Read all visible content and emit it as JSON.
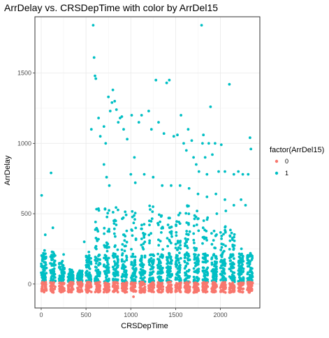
{
  "chart_data": {
    "type": "scatter",
    "title": "ArrDelay vs. CRSDepTime with color by ArrDel15",
    "xlabel": "CRSDepTime",
    "ylabel": "ArrDelay",
    "xlim": [
      -70,
      2440
    ],
    "ylim": [
      -170,
      1900
    ],
    "x_ticks": [
      0,
      500,
      1000,
      1500,
      2000
    ],
    "y_ticks": [
      0,
      500,
      1000,
      1500
    ],
    "x_tick_labels": [
      "0",
      "500",
      "1000",
      "1500",
      "2000"
    ],
    "y_tick_labels": [
      "0",
      "500",
      "1000",
      "1500"
    ],
    "grid": true,
    "legend": {
      "title": "factor(ArrDel15)",
      "placement": "right",
      "entries": [
        {
          "label": "0",
          "color": "#F8766D"
        },
        {
          "label": "1",
          "color": "#00BFC4"
        }
      ]
    },
    "series": [
      {
        "name": "0",
        "color": "#F8766D",
        "description_bands": "dense band of points between ArrDelay -60 and 14 across all departure hours",
        "band": {
          "ymin": -60,
          "ymax": 14
        },
        "points": [
          [
            1030,
            -90
          ],
          [
            700,
            -58
          ],
          [
            1500,
            -55
          ],
          [
            2100,
            -57
          ],
          [
            300,
            -52
          ]
        ]
      },
      {
        "name": "1",
        "color": "#00BFC4",
        "hour_columns": [
          {
            "x": 0,
            "top": 240
          },
          {
            "x": 100,
            "top": 235
          },
          {
            "x": 200,
            "top": 150
          },
          {
            "x": 300,
            "top": 90
          },
          {
            "x": 400,
            "top": 80
          },
          {
            "x": 500,
            "top": 240
          },
          {
            "x": 600,
            "top": 640
          },
          {
            "x": 700,
            "top": 560
          },
          {
            "x": 800,
            "top": 580
          },
          {
            "x": 900,
            "top": 540
          },
          {
            "x": 1000,
            "top": 520
          },
          {
            "x": 1100,
            "top": 500
          },
          {
            "x": 1200,
            "top": 560
          },
          {
            "x": 1300,
            "top": 540
          },
          {
            "x": 1400,
            "top": 520
          },
          {
            "x": 1500,
            "top": 540
          },
          {
            "x": 1600,
            "top": 560
          },
          {
            "x": 1700,
            "top": 520
          },
          {
            "x": 1800,
            "top": 480
          },
          {
            "x": 1900,
            "top": 460
          },
          {
            "x": 2000,
            "top": 430
          },
          {
            "x": 2100,
            "top": 390
          },
          {
            "x": 2200,
            "top": 260
          },
          {
            "x": 2300,
            "top": 230
          }
        ],
        "points": [
          [
            5,
            630
          ],
          [
            110,
            790
          ],
          [
            130,
            400
          ],
          [
            45,
            350
          ],
          [
            250,
            210
          ],
          [
            480,
            300
          ],
          [
            560,
            1100
          ],
          [
            580,
            1840
          ],
          [
            590,
            1610
          ],
          [
            600,
            1480
          ],
          [
            610,
            1460
          ],
          [
            640,
            1180
          ],
          [
            660,
            1050
          ],
          [
            700,
            1120
          ],
          [
            720,
            1000
          ],
          [
            750,
            1330
          ],
          [
            770,
            1230
          ],
          [
            790,
            1290
          ],
          [
            800,
            1380
          ],
          [
            820,
            1300
          ],
          [
            840,
            1240
          ],
          [
            860,
            1150
          ],
          [
            880,
            1180
          ],
          [
            900,
            1190
          ],
          [
            920,
            1100
          ],
          [
            960,
            1030
          ],
          [
            1010,
            1200
          ],
          [
            1040,
            900
          ],
          [
            1090,
            1150
          ],
          [
            1120,
            1200
          ],
          [
            1200,
            1230
          ],
          [
            1230,
            1100
          ],
          [
            1280,
            1450
          ],
          [
            1310,
            1150
          ],
          [
            1370,
            1070
          ],
          [
            1400,
            1430
          ],
          [
            1430,
            1450
          ],
          [
            1480,
            1050
          ],
          [
            1520,
            1060
          ],
          [
            1560,
            1200
          ],
          [
            1590,
            1000
          ],
          [
            1620,
            950
          ],
          [
            1640,
            1100
          ],
          [
            1680,
            1020
          ],
          [
            1700,
            900
          ],
          [
            1730,
            850
          ],
          [
            1760,
            800
          ],
          [
            1790,
            1840
          ],
          [
            1800,
            1000
          ],
          [
            1810,
            1060
          ],
          [
            1830,
            900
          ],
          [
            1850,
            780
          ],
          [
            1870,
            1000
          ],
          [
            1890,
            1260
          ],
          [
            1910,
            920
          ],
          [
            1940,
            1000
          ],
          [
            1980,
            800
          ],
          [
            2010,
            990
          ],
          [
            2050,
            800
          ],
          [
            2100,
            1420
          ],
          [
            2150,
            780
          ],
          [
            2200,
            800
          ],
          [
            2250,
            780
          ],
          [
            2310,
            780
          ],
          [
            2330,
            1040
          ],
          [
            2340,
            960
          ],
          [
            2230,
            600
          ],
          [
            2280,
            560
          ],
          [
            1960,
            500
          ],
          [
            2060,
            520
          ],
          [
            700,
            850
          ],
          [
            730,
            760
          ],
          [
            760,
            700
          ],
          [
            1000,
            780
          ],
          [
            1050,
            720
          ],
          [
            1150,
            780
          ],
          [
            1250,
            760
          ],
          [
            1350,
            700
          ],
          [
            1450,
            700
          ],
          [
            1550,
            700
          ],
          [
            1650,
            680
          ],
          [
            1750,
            640
          ],
          [
            1850,
            620
          ],
          [
            1950,
            640
          ],
          [
            2050,
            600
          ],
          [
            2150,
            560
          ]
        ]
      }
    ]
  }
}
